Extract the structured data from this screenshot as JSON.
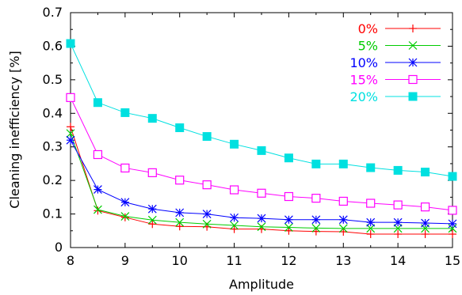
{
  "chart_data": {
    "type": "line",
    "title": "",
    "xlabel": "Amplitude",
    "ylabel": "Cleaning inefficiency [%]",
    "xlim": [
      8,
      15
    ],
    "ylim": [
      0,
      0.7
    ],
    "xticks": [
      "8",
      "9",
      "10",
      "11",
      "12",
      "13",
      "14",
      "15"
    ],
    "yticks": [
      "0",
      "0.1",
      "0.2",
      "0.3",
      "0.4",
      "0.5",
      "0.6",
      "0.7"
    ],
    "grid": false,
    "legend_position": "top-right",
    "x": [
      8,
      8.5,
      9,
      9.5,
      10,
      10.5,
      11,
      11.5,
      12,
      12.5,
      13,
      13.5,
      14,
      14.5,
      15
    ],
    "series": [
      {
        "name": "0%",
        "color": "#ff0000",
        "marker": "plus",
        "values": [
          0.36,
          0.11,
          0.09,
          0.07,
          0.063,
          0.062,
          0.055,
          0.055,
          0.05,
          0.048,
          0.047,
          0.04,
          0.04,
          0.04,
          0.04
        ]
      },
      {
        "name": "5%",
        "color": "#00cc00",
        "marker": "cross",
        "values": [
          0.34,
          0.113,
          0.093,
          0.082,
          0.075,
          0.07,
          0.066,
          0.062,
          0.06,
          0.058,
          0.057,
          0.057,
          0.057,
          0.057,
          0.057
        ]
      },
      {
        "name": "10%",
        "color": "#0000ff",
        "marker": "star",
        "values": [
          0.32,
          0.173,
          0.135,
          0.115,
          0.104,
          0.1,
          0.089,
          0.087,
          0.083,
          0.083,
          0.083,
          0.075,
          0.075,
          0.073,
          0.071
        ]
      },
      {
        "name": "15%",
        "color": "#ff00ff",
        "marker": "open-square",
        "values": [
          0.447,
          0.277,
          0.237,
          0.223,
          0.201,
          0.187,
          0.172,
          0.162,
          0.152,
          0.147,
          0.138,
          0.132,
          0.127,
          0.121,
          0.111
        ]
      },
      {
        "name": "20%",
        "color": "#00e0e0",
        "marker": "filled-square",
        "values": [
          0.608,
          0.432,
          0.402,
          0.385,
          0.357,
          0.331,
          0.308,
          0.289,
          0.267,
          0.249,
          0.249,
          0.238,
          0.23,
          0.225,
          0.212
        ]
      }
    ]
  }
}
